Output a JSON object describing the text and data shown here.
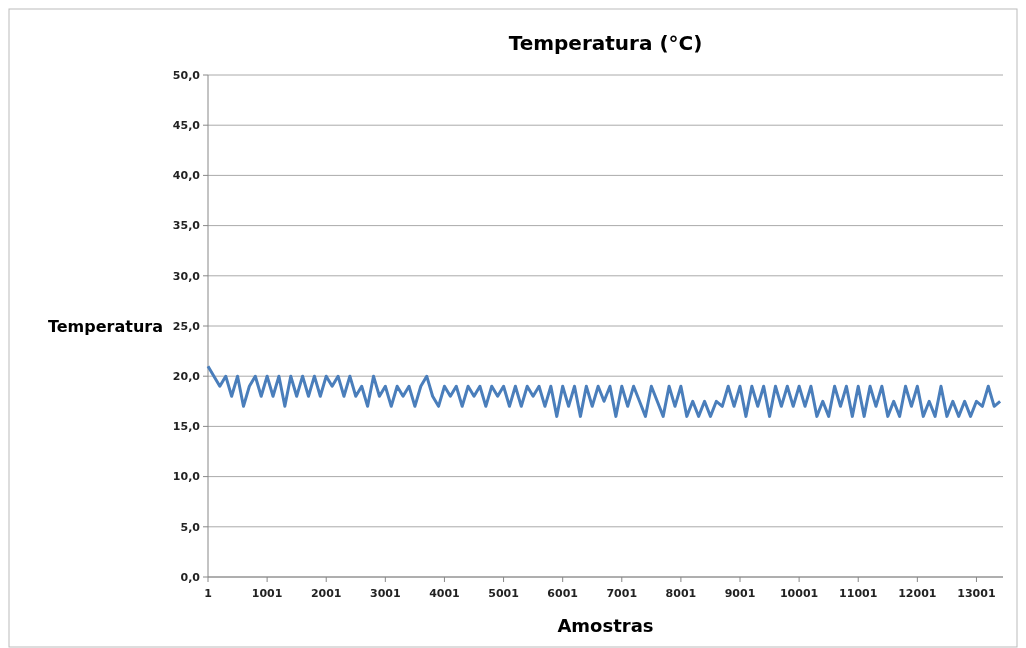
{
  "chart_data": {
    "type": "line",
    "title": "Temperatura (°C)",
    "xlabel": "Amostras",
    "ylabel": "Temperatura",
    "x": [
      1,
      101,
      201,
      301,
      401,
      501,
      601,
      701,
      801,
      901,
      1001,
      1101,
      1201,
      1301,
      1401,
      1501,
      1601,
      1701,
      1801,
      1901,
      2001,
      2101,
      2201,
      2301,
      2401,
      2501,
      2601,
      2701,
      2801,
      2901,
      3001,
      3101,
      3201,
      3301,
      3401,
      3501,
      3601,
      3701,
      3801,
      3901,
      4001,
      4101,
      4201,
      4301,
      4401,
      4501,
      4601,
      4701,
      4801,
      4901,
      5001,
      5101,
      5201,
      5301,
      5401,
      5501,
      5601,
      5701,
      5801,
      5901,
      6001,
      6101,
      6201,
      6301,
      6401,
      6501,
      6601,
      6701,
      6801,
      6901,
      7001,
      7101,
      7201,
      7301,
      7401,
      7501,
      7601,
      7701,
      7801,
      7901,
      8001,
      8101,
      8201,
      8301,
      8401,
      8501,
      8601,
      8701,
      8801,
      8901,
      9001,
      9101,
      9201,
      9301,
      9401,
      9501,
      9601,
      9701,
      9801,
      9901,
      10001,
      10101,
      10201,
      10301,
      10401,
      10501,
      10601,
      10701,
      10801,
      10901,
      11001,
      11101,
      11201,
      11301,
      11401,
      11501,
      11601,
      11701,
      11801,
      11901,
      12001,
      12101,
      12201,
      12301,
      12401,
      12501,
      12601,
      12701,
      12801,
      12901,
      13001,
      13101,
      13201,
      13301,
      13401
    ],
    "series": [
      {
        "color": "#4a7ebb",
        "values": [
          21,
          20,
          19,
          20,
          18,
          20,
          17,
          19,
          20,
          18,
          20,
          18,
          20,
          17,
          20,
          18,
          20,
          18,
          20,
          18,
          20,
          19,
          20,
          18,
          20,
          18,
          19,
          17,
          20,
          18,
          19,
          17,
          19,
          18,
          19,
          17,
          19,
          20,
          18,
          17,
          19,
          18,
          19,
          17,
          19,
          18,
          19,
          17,
          19,
          18,
          19,
          17,
          19,
          17,
          19,
          18,
          19,
          17,
          19,
          16,
          19,
          17,
          19,
          16,
          19,
          17,
          19,
          17.5,
          19,
          16,
          19,
          17,
          19,
          17.5,
          16,
          19,
          17.5,
          16,
          19,
          17,
          19,
          16,
          17.5,
          16,
          17.5,
          16,
          17.5,
          17,
          19,
          17,
          19,
          16,
          19,
          17,
          19,
          16,
          19,
          17,
          19,
          17,
          19,
          17,
          19,
          16,
          17.5,
          16,
          19,
          17,
          19,
          16,
          19,
          16,
          19,
          17,
          19,
          16,
          17.5,
          16,
          19,
          17,
          19,
          16,
          17.5,
          16,
          19,
          16,
          17.5,
          16,
          17.5,
          16,
          17.5,
          17,
          19,
          17,
          17.5
        ]
      }
    ],
    "xlim": [
      1,
      13450
    ],
    "xticks": [
      1,
      1001,
      2001,
      3001,
      4001,
      5001,
      6001,
      7001,
      8001,
      9001,
      10001,
      11001,
      12001,
      13001
    ],
    "ylim": [
      0,
      50
    ],
    "yticks": [
      {
        "value": 0,
        "label": "0,0"
      },
      {
        "value": 5,
        "label": "5,0"
      },
      {
        "value": 10,
        "label": "10,0"
      },
      {
        "value": 15,
        "label": "15,0"
      },
      {
        "value": 20,
        "label": "20,0"
      },
      {
        "value": 25,
        "label": "25,0"
      },
      {
        "value": 30,
        "label": "30,0"
      },
      {
        "value": 35,
        "label": "35,0"
      },
      {
        "value": 40,
        "label": "40,0"
      },
      {
        "value": 45,
        "label": "45,0"
      },
      {
        "value": 50,
        "label": "50,0"
      }
    ],
    "grid": "y",
    "marker": "none",
    "line_style": "solid"
  }
}
